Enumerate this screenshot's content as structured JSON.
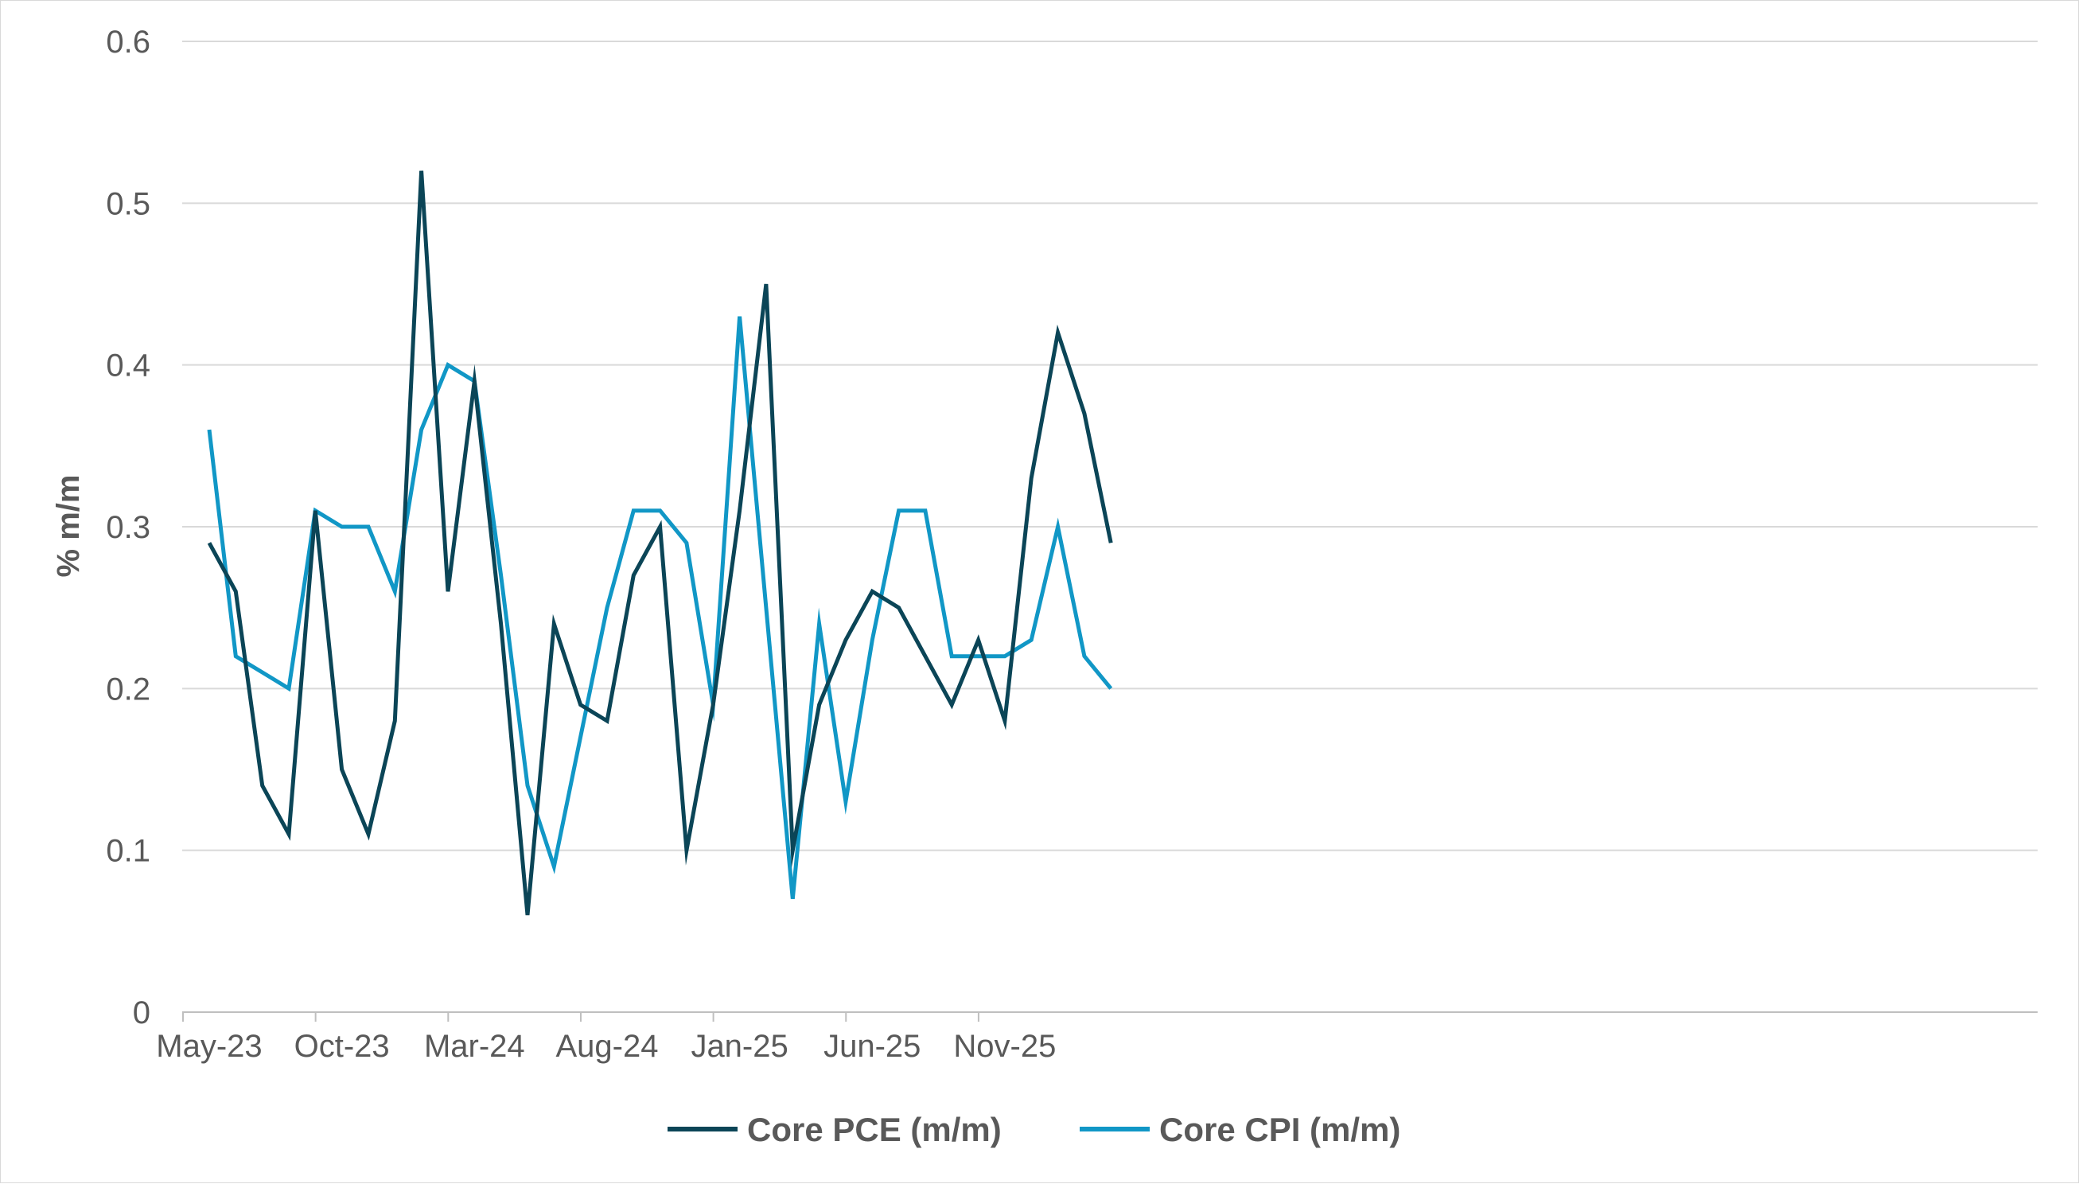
{
  "chart_data": {
    "type": "line",
    "title": "",
    "xlabel": "",
    "ylabel": "% m/m",
    "ylim": [
      0,
      0.6
    ],
    "yticks": [
      "0",
      "0.1",
      "0.2",
      "0.3",
      "0.4",
      "0.5",
      "0.6"
    ],
    "xtick_labels": [
      "May-23",
      "Oct-23",
      "Mar-24",
      "Aug-24",
      "Jan-25",
      "Jun-25",
      "Nov-25"
    ],
    "x": [
      "May-23",
      "Jun-23",
      "Jul-23",
      "Aug-23",
      "Sep-23",
      "Oct-23",
      "Nov-23",
      "Dec-23",
      "Jan-24",
      "Feb-24",
      "Mar-24",
      "Apr-24",
      "May-24",
      "Jun-24",
      "Jul-24",
      "Aug-24",
      "Sep-24",
      "Oct-24",
      "Nov-24",
      "Dec-24",
      "Jan-25",
      "Feb-25",
      "Mar-25",
      "Apr-25",
      "May-25",
      "Jun-25",
      "Jul-25",
      "Aug-25",
      "Sep-25",
      "Oct-25",
      "Nov-25",
      "Dec-25",
      "Jan-26",
      "Feb-26",
      "Mar-26"
    ],
    "grid": true,
    "legend_position": "bottom",
    "series": [
      {
        "name": "Core PCE (m/m)",
        "color": "#0b4557",
        "values": [
          0.29,
          0.26,
          0.14,
          0.11,
          0.31,
          0.15,
          0.11,
          0.18,
          0.52,
          0.26,
          0.39,
          0.24,
          0.06,
          0.24,
          0.19,
          0.18,
          0.27,
          0.3,
          0.1,
          0.19,
          0.31,
          0.45,
          0.1,
          0.19,
          0.23,
          0.26,
          0.25,
          0.22,
          0.19,
          0.23,
          0.18,
          0.33,
          0.42,
          0.37,
          0.29
        ]
      },
      {
        "name": "Core CPI (m/m)",
        "color": "#1197c6",
        "values": [
          0.36,
          0.22,
          0.21,
          0.2,
          0.31,
          0.3,
          0.3,
          0.26,
          0.36,
          0.4,
          0.39,
          0.27,
          0.14,
          0.09,
          0.17,
          0.25,
          0.31,
          0.31,
          0.29,
          0.19,
          0.43,
          0.25,
          0.07,
          0.24,
          0.13,
          0.23,
          0.31,
          0.31,
          0.22,
          0.22,
          0.22,
          0.23,
          0.3,
          0.22,
          0.2
        ]
      }
    ]
  }
}
